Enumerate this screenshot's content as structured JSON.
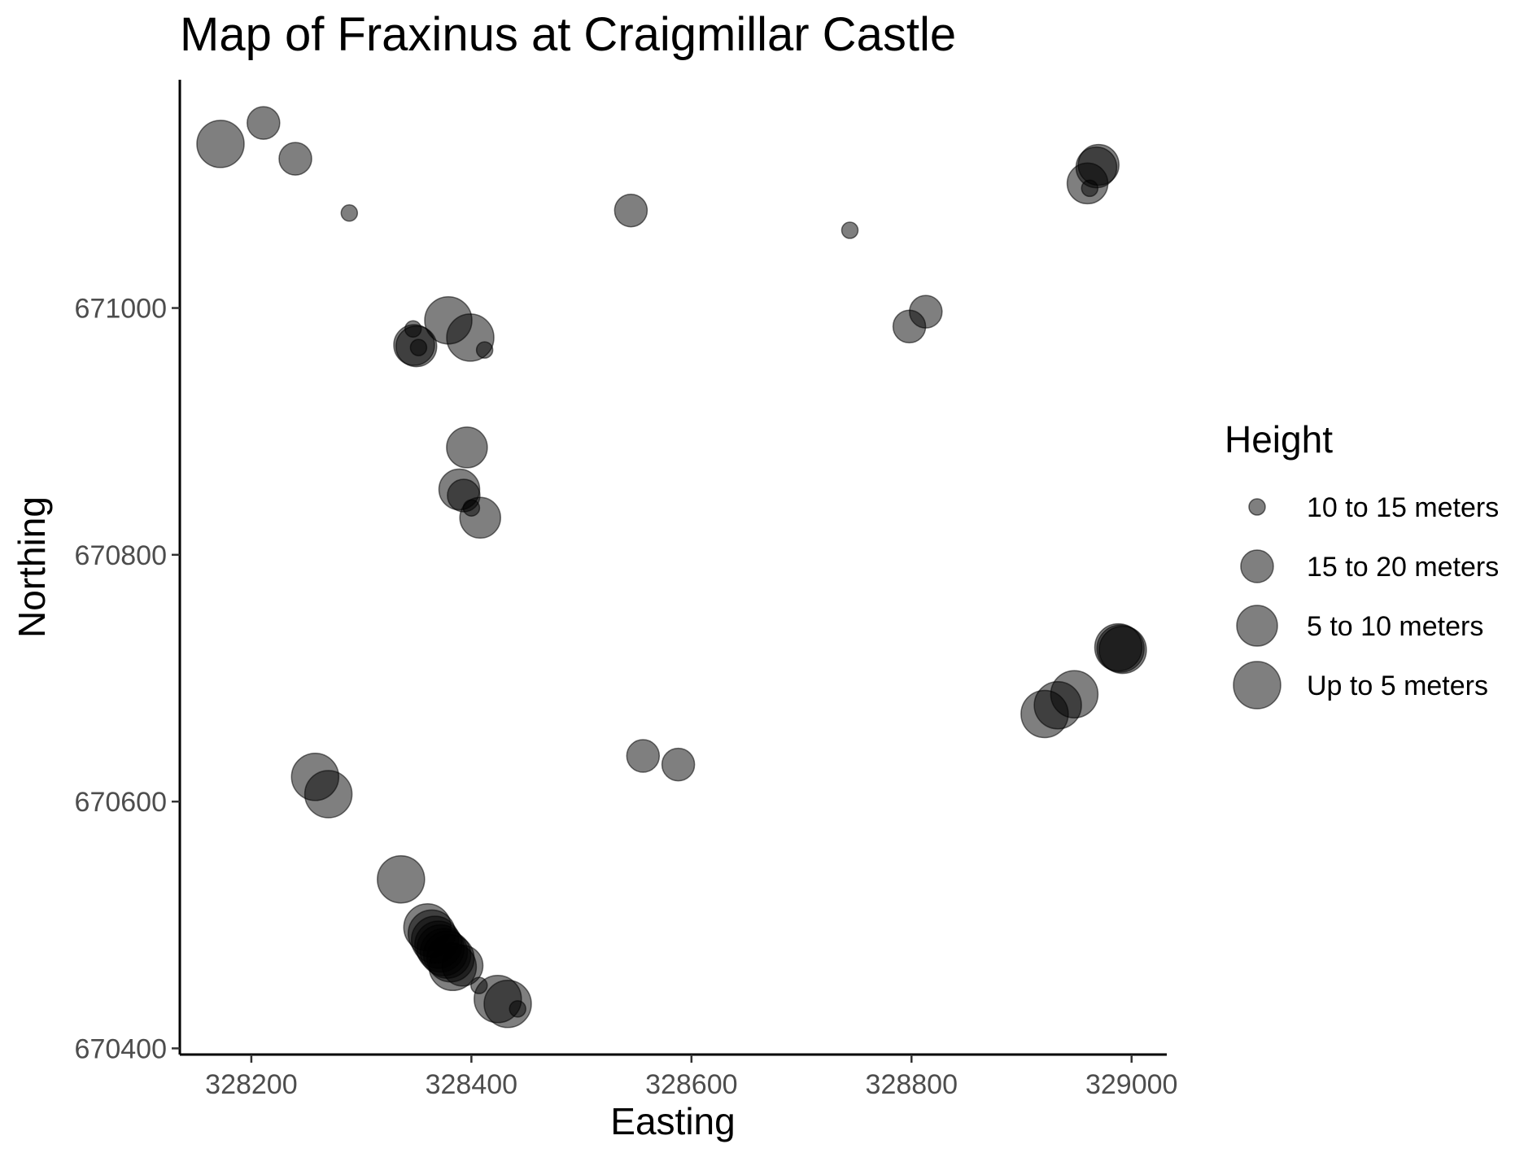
{
  "chart_data": {
    "type": "scatter",
    "title": "Map of Fraxinus at Craigmillar Castle",
    "xlabel": "Easting",
    "ylabel": "Northing",
    "xlim": [
      328135,
      329032
    ],
    "ylim": [
      670395,
      671185
    ],
    "xticks": [
      {
        "value": 328200,
        "label": "328200"
      },
      {
        "value": 328400,
        "label": "328400"
      },
      {
        "value": 328600,
        "label": "328600"
      },
      {
        "value": 328800,
        "label": "328800"
      },
      {
        "value": 329000,
        "label": "329000"
      }
    ],
    "yticks": [
      {
        "value": 670400,
        "label": "670400"
      },
      {
        "value": 670600,
        "label": "670600"
      },
      {
        "value": 670800,
        "label": "670800"
      },
      {
        "value": 671000,
        "label": "671000"
      }
    ],
    "grid": false,
    "point_color": "#000000",
    "point_opacity": 0.5,
    "legend": {
      "title": "Height",
      "placement": "right",
      "entries": [
        {
          "label": "10 to 15 meters",
          "size_rank": 1
        },
        {
          "label": "15 to 20 meters",
          "size_rank": 2
        },
        {
          "label": "5 to 10 meters",
          "size_rank": 3
        },
        {
          "label": "Up to 5 meters",
          "size_rank": 4
        }
      ]
    },
    "points": [
      {
        "x": 328172,
        "y": 671133,
        "height": "Up to 5 meters"
      },
      {
        "x": 328211,
        "y": 671150,
        "height": "15 to 20 meters"
      },
      {
        "x": 328240,
        "y": 671121,
        "height": "15 to 20 meters"
      },
      {
        "x": 328289,
        "y": 671077,
        "height": "10 to 15 meters"
      },
      {
        "x": 328545,
        "y": 671079,
        "height": "15 to 20 meters"
      },
      {
        "x": 328744,
        "y": 671063,
        "height": "10 to 15 meters"
      },
      {
        "x": 328960,
        "y": 671101,
        "height": "5 to 10 meters"
      },
      {
        "x": 328968,
        "y": 671114,
        "height": "5 to 10 meters"
      },
      {
        "x": 328970,
        "y": 671116,
        "height": "5 to 10 meters"
      },
      {
        "x": 328962,
        "y": 671097,
        "height": "10 to 15 meters"
      },
      {
        "x": 328347,
        "y": 670983,
        "height": "10 to 15 meters"
      },
      {
        "x": 328348,
        "y": 670970,
        "height": "5 to 10 meters"
      },
      {
        "x": 328350,
        "y": 670969,
        "height": "5 to 10 meters"
      },
      {
        "x": 328352,
        "y": 670968,
        "height": "10 to 15 meters"
      },
      {
        "x": 328379,
        "y": 670990,
        "height": "Up to 5 meters"
      },
      {
        "x": 328399,
        "y": 670976,
        "height": "Up to 5 meters"
      },
      {
        "x": 328412,
        "y": 670966,
        "height": "10 to 15 meters"
      },
      {
        "x": 328798,
        "y": 670985,
        "height": "15 to 20 meters"
      },
      {
        "x": 328813,
        "y": 670997,
        "height": "15 to 20 meters"
      },
      {
        "x": 328396,
        "y": 670887,
        "height": "5 to 10 meters"
      },
      {
        "x": 328389,
        "y": 670853,
        "height": "5 to 10 meters"
      },
      {
        "x": 328393,
        "y": 670848,
        "height": "15 to 20 meters"
      },
      {
        "x": 328400,
        "y": 670838,
        "height": "10 to 15 meters"
      },
      {
        "x": 328408,
        "y": 670830,
        "height": "5 to 10 meters"
      },
      {
        "x": 328988,
        "y": 670725,
        "height": "Up to 5 meters"
      },
      {
        "x": 328990,
        "y": 670724,
        "height": "Up to 5 meters"
      },
      {
        "x": 328992,
        "y": 670723,
        "height": "Up to 5 meters"
      },
      {
        "x": 328948,
        "y": 670687,
        "height": "Up to 5 meters"
      },
      {
        "x": 328933,
        "y": 670678,
        "height": "Up to 5 meters"
      },
      {
        "x": 328921,
        "y": 670671,
        "height": "Up to 5 meters"
      },
      {
        "x": 328258,
        "y": 670620,
        "height": "Up to 5 meters"
      },
      {
        "x": 328270,
        "y": 670606,
        "height": "Up to 5 meters"
      },
      {
        "x": 328556,
        "y": 670637,
        "height": "15 to 20 meters"
      },
      {
        "x": 328588,
        "y": 670630,
        "height": "15 to 20 meters"
      },
      {
        "x": 328336,
        "y": 670537,
        "height": "Up to 5 meters"
      },
      {
        "x": 328360,
        "y": 670498,
        "height": "Up to 5 meters"
      },
      {
        "x": 328364,
        "y": 670493,
        "height": "Up to 5 meters"
      },
      {
        "x": 328367,
        "y": 670488,
        "height": "Up to 5 meters"
      },
      {
        "x": 328370,
        "y": 670484,
        "height": "Up to 5 meters"
      },
      {
        "x": 328372,
        "y": 670481,
        "height": "Up to 5 meters"
      },
      {
        "x": 328375,
        "y": 670478,
        "height": "Up to 5 meters"
      },
      {
        "x": 328378,
        "y": 670476,
        "height": "Up to 5 meters"
      },
      {
        "x": 328381,
        "y": 670473,
        "height": "Up to 5 meters"
      },
      {
        "x": 328383,
        "y": 670466,
        "height": "Up to 5 meters"
      },
      {
        "x": 328392,
        "y": 670467,
        "height": "5 to 10 meters"
      },
      {
        "x": 328407,
        "y": 670451,
        "height": "10 to 15 meters"
      },
      {
        "x": 328424,
        "y": 670440,
        "height": "Up to 5 meters"
      },
      {
        "x": 328433,
        "y": 670436,
        "height": "Up to 5 meters"
      },
      {
        "x": 328442,
        "y": 670432,
        "height": "10 to 15 meters"
      }
    ]
  }
}
